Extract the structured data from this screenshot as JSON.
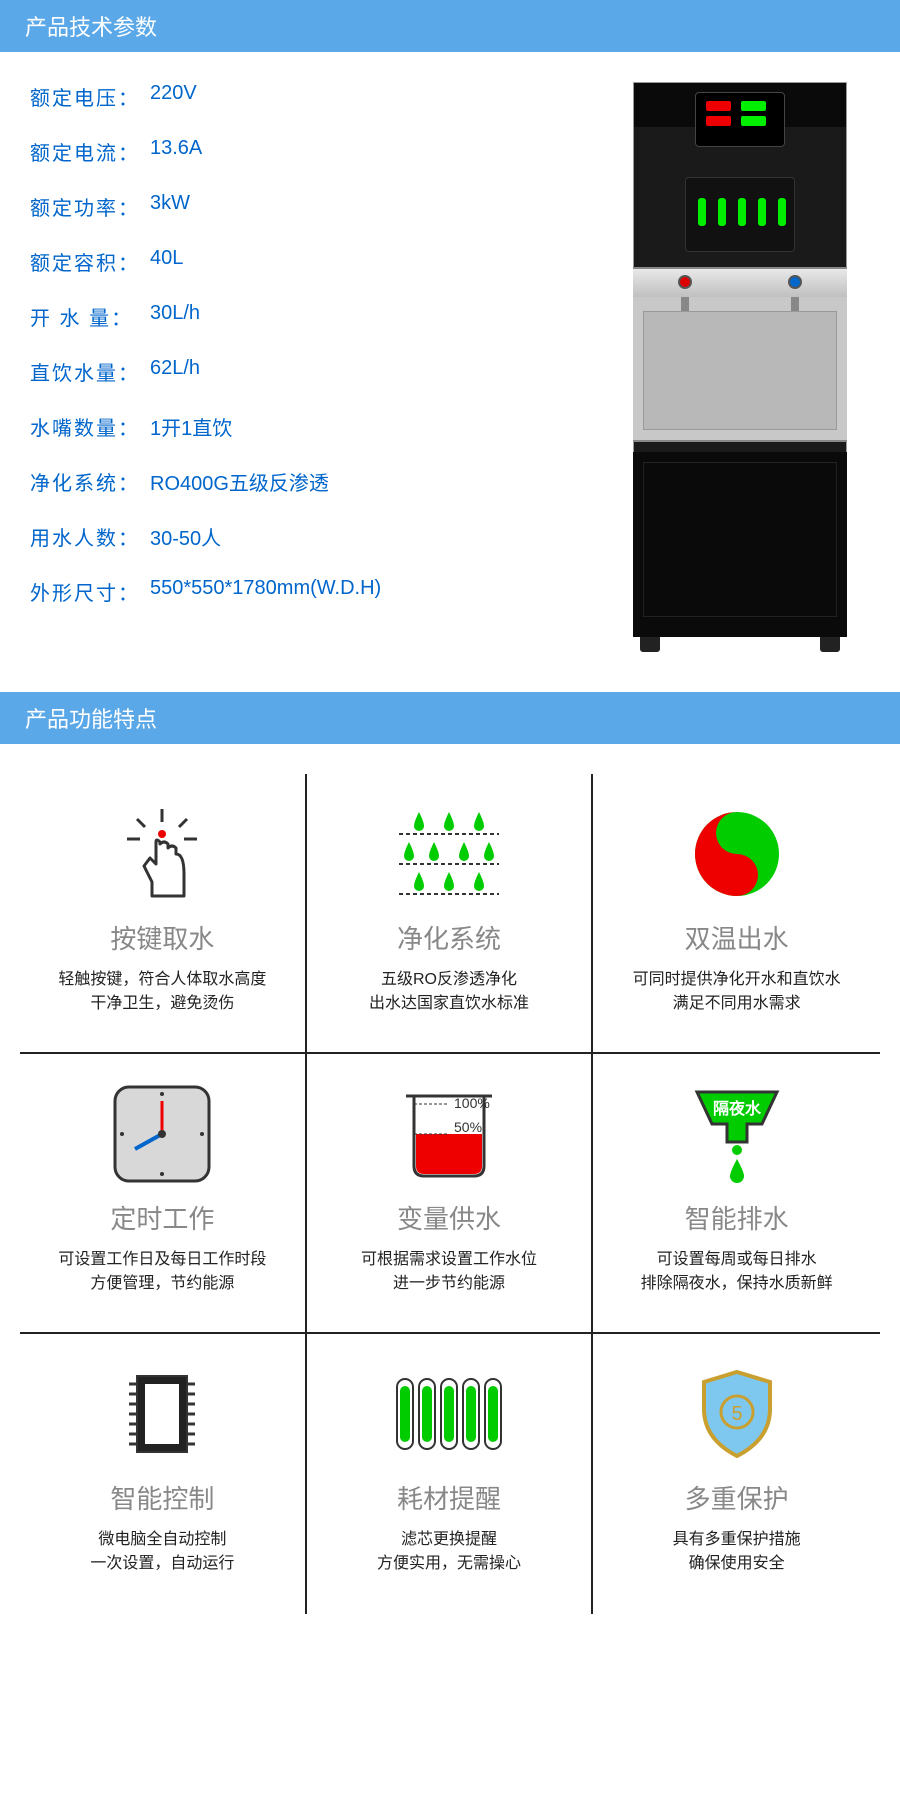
{
  "section1": {
    "title": "产品技术参数"
  },
  "specs": [
    {
      "label": "额定电压：",
      "value": "220V"
    },
    {
      "label": "额定电流：",
      "value": "13.6A"
    },
    {
      "label": "额定功率：",
      "value": "3kW"
    },
    {
      "label": "额定容积：",
      "value": "40L"
    },
    {
      "label": "开 水 量：",
      "value": "30L/h"
    },
    {
      "label": "直饮水量：",
      "value": "62L/h"
    },
    {
      "label": "水嘴数量：",
      "value": "1开1直饮"
    },
    {
      "label": "净化系统：",
      "value": "RO400G五级反渗透"
    },
    {
      "label": "用水人数：",
      "value": "30-50人"
    },
    {
      "label": "外形尺寸：",
      "value": "550*550*1780mm(W.D.H)"
    }
  ],
  "section2": {
    "title": "产品功能特点"
  },
  "features": [
    {
      "title": "按键取水",
      "desc": "轻触按键，符合人体取水高度\n干净卫生，避免烫伤"
    },
    {
      "title": "净化系统",
      "desc": "五级RO反渗透净化\n出水达国家直饮水标准"
    },
    {
      "title": "双温出水",
      "desc": "可同时提供净化开水和直饮水\n满足不同用水需求"
    },
    {
      "title": "定时工作",
      "desc": "可设置工作日及每日工作时段\n方便管理，节约能源"
    },
    {
      "title": "变量供水",
      "desc": "可根据需求设置工作水位\n进一步节约能源",
      "labels": [
        "100%",
        "50%"
      ]
    },
    {
      "title": "智能排水",
      "desc": "可设置每周或每日排水\n排除隔夜水，保持水质新鲜",
      "badge": "隔夜水"
    },
    {
      "title": "智能控制",
      "desc": "微电脑全自动控制\n一次设置，自动运行"
    },
    {
      "title": "耗材提醒",
      "desc": "滤芯更换提醒\n方便实用，无需操心"
    },
    {
      "title": "多重保护",
      "desc": "具有多重保护措施\n确保使用安全"
    }
  ],
  "colors": {
    "header": "#5ba8e8",
    "link": "#0066cc",
    "green": "#00cc00",
    "red": "#e00000"
  }
}
